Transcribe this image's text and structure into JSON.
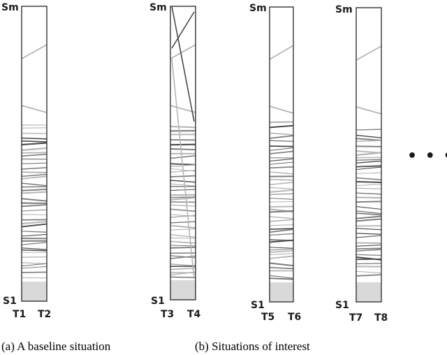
{
  "panels": [
    {
      "top_label": "Sm",
      "bottom_label": "S1",
      "left_tick": "T1",
      "right_tick": "T2"
    },
    {
      "top_label": "Sm",
      "bottom_label": "S1",
      "left_tick": "T3",
      "right_tick": "T4"
    },
    {
      "top_label": "Sm",
      "bottom_label": "S1",
      "left_tick": "T5",
      "right_tick": "T6"
    },
    {
      "top_label": "Sm",
      "bottom_label": "S1",
      "left_tick": "T7",
      "right_tick": "T8"
    }
  ],
  "ellipsis": "• • •",
  "captions": {
    "a": "(a) A baseline situation",
    "b": "(b) Situations of interest"
  },
  "colors": {
    "frame": "#333333",
    "line_dark": "#4a4a4a",
    "line_mid": "#7c7c7c",
    "line_light": "#b5b5b5"
  }
}
